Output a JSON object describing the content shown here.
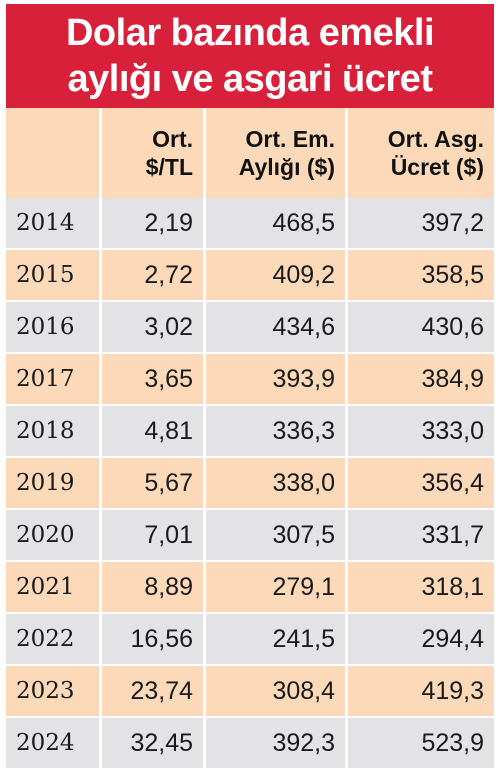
{
  "title": {
    "line1": "Dolar bazında emekli",
    "line2": "aylığı ve asgari ücret"
  },
  "columns": [
    {
      "line1": "",
      "line2": ""
    },
    {
      "line1": "Ort.",
      "line2": "$/TL"
    },
    {
      "line1": "Ort. Em.",
      "line2": "Aylığı ($)"
    },
    {
      "line1": "Ort. Asg.",
      "line2": "Ücret ($)"
    }
  ],
  "rows": [
    {
      "year": "2014",
      "rate": "2,19",
      "pension": "468,5",
      "wage": "397,2"
    },
    {
      "year": "2015",
      "rate": "2,72",
      "pension": "409,2",
      "wage": "358,5"
    },
    {
      "year": "2016",
      "rate": "3,02",
      "pension": "434,6",
      "wage": "430,6"
    },
    {
      "year": "2017",
      "rate": "3,65",
      "pension": "393,9",
      "wage": "384,9"
    },
    {
      "year": "2018",
      "rate": "4,81",
      "pension": "336,3",
      "wage": "333,0"
    },
    {
      "year": "2019",
      "rate": "5,67",
      "pension": "338,0",
      "wage": "356,4"
    },
    {
      "year": "2020",
      "rate": "7,01",
      "pension": "307,5",
      "wage": "331,7"
    },
    {
      "year": "2021",
      "rate": "8,89",
      "pension": "279,1",
      "wage": "318,1"
    },
    {
      "year": "2022",
      "rate": "16,56",
      "pension": "241,5",
      "wage": "294,4"
    },
    {
      "year": "2023",
      "rate": "23,74",
      "pension": "308,4",
      "wage": "419,3"
    },
    {
      "year": "2024",
      "rate": "32,45",
      "pension": "392,3",
      "wage": "523,9"
    }
  ],
  "colors": {
    "title_bg": "#d8203a",
    "row_gray": "#e3e3e6",
    "row_peach": "#fbd9b9"
  }
}
